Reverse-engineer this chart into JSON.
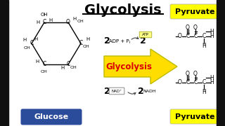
{
  "title": "Glycolysis",
  "background_color": "#ffffff",
  "glucose_label": "Glucose",
  "glucose_box_color": "#2b4b9b",
  "glucose_text_color": "#ffffff",
  "pyruvate_label": "Pyruvate",
  "pyruvate_box_color": "#ffff00",
  "pyruvate_text_color": "#000000",
  "glycolysis_arrow_color": "#ffdd00",
  "glycolysis_arrow_text": "Glycolysis",
  "glycolysis_arrow_text_color": "#dd0000",
  "border_width": 12
}
